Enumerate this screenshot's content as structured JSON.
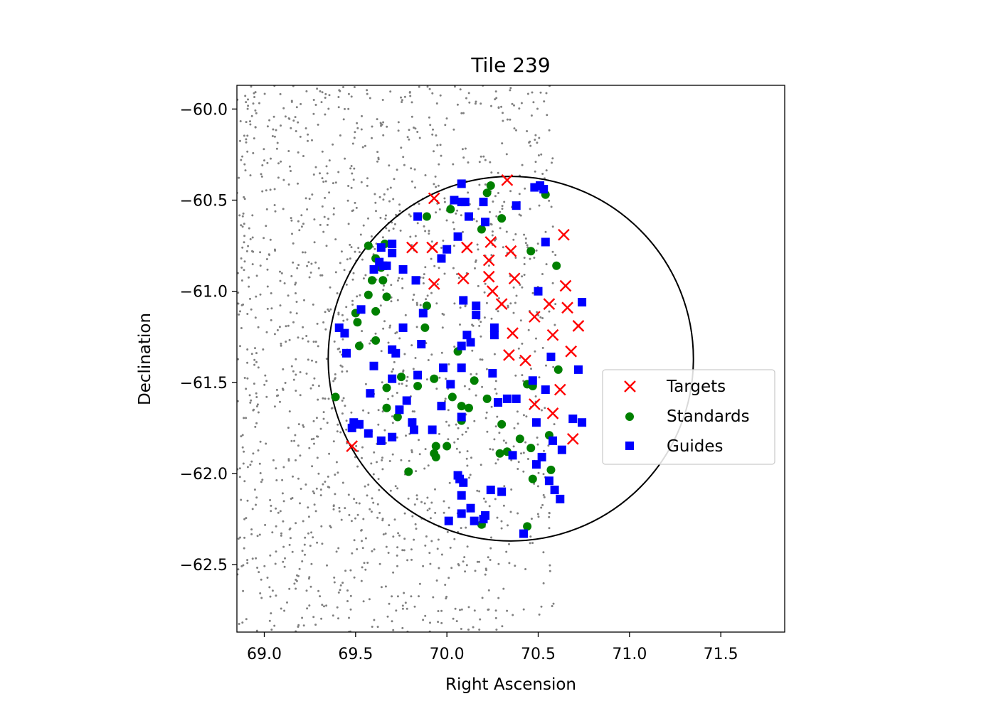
{
  "chart_data": {
    "type": "scatter",
    "title": "Tile 239",
    "xlabel": "Right Ascension",
    "ylabel": "Declination",
    "xlim": [
      68.85,
      71.85
    ],
    "ylim": [
      -62.87,
      -59.87
    ],
    "xticks": [
      69.0,
      69.5,
      70.0,
      70.5,
      71.0,
      71.5
    ],
    "xtick_labels": [
      "69.0",
      "69.5",
      "70.0",
      "70.5",
      "71.0",
      "71.5"
    ],
    "yticks": [
      -60.0,
      -60.5,
      -61.0,
      -61.5,
      -62.0,
      -62.5
    ],
    "ytick_labels": [
      "−60.0",
      "−60.5",
      "−61.0",
      "−61.5",
      "−62.0",
      "−62.5"
    ],
    "legend_position": "center-right",
    "grid": false,
    "tile_circle": {
      "center": [
        70.35,
        -61.37
      ],
      "radius_deg": 1.0,
      "color": "#000000"
    },
    "background_points": {
      "color": "#808080",
      "ra_range": [
        68.85,
        70.6
      ],
      "dec_range": [
        -62.87,
        -59.87
      ],
      "density": "dense on left, sparser toward ~70.5"
    },
    "series": [
      {
        "name": "Targets",
        "marker": "x",
        "color": "#ff0000",
        "points": [
          [
            70.33,
            -60.39
          ],
          [
            69.93,
            -60.49
          ],
          [
            69.81,
            -60.76
          ],
          [
            69.92,
            -60.76
          ],
          [
            70.11,
            -60.76
          ],
          [
            70.24,
            -60.73
          ],
          [
            70.35,
            -60.78
          ],
          [
            70.64,
            -60.69
          ],
          [
            70.23,
            -60.83
          ],
          [
            70.09,
            -60.93
          ],
          [
            70.23,
            -60.92
          ],
          [
            70.37,
            -60.93
          ],
          [
            69.93,
            -60.96
          ],
          [
            70.25,
            -61.0
          ],
          [
            70.3,
            -61.07
          ],
          [
            70.65,
            -60.97
          ],
          [
            70.56,
            -61.07
          ],
          [
            70.66,
            -61.09
          ],
          [
            70.48,
            -61.14
          ],
          [
            70.72,
            -61.19
          ],
          [
            70.36,
            -61.23
          ],
          [
            70.58,
            -61.24
          ],
          [
            70.34,
            -61.35
          ],
          [
            70.43,
            -61.38
          ],
          [
            70.68,
            -61.33
          ],
          [
            70.62,
            -61.54
          ],
          [
            70.48,
            -61.62
          ],
          [
            70.58,
            -61.67
          ],
          [
            70.69,
            -61.81
          ],
          [
            69.48,
            -61.85
          ]
        ]
      },
      {
        "name": "Standards",
        "marker": "circle",
        "color": "#008000",
        "points": [
          [
            70.24,
            -60.42
          ],
          [
            70.22,
            -60.46
          ],
          [
            70.54,
            -60.47
          ],
          [
            69.89,
            -60.59
          ],
          [
            70.02,
            -60.55
          ],
          [
            70.3,
            -60.6
          ],
          [
            70.19,
            -60.66
          ],
          [
            69.57,
            -60.75
          ],
          [
            69.66,
            -60.74
          ],
          [
            69.61,
            -60.82
          ],
          [
            70.46,
            -60.78
          ],
          [
            70.6,
            -60.86
          ],
          [
            69.64,
            -60.87
          ],
          [
            69.59,
            -60.94
          ],
          [
            69.65,
            -60.94
          ],
          [
            69.57,
            -61.02
          ],
          [
            69.67,
            -61.03
          ],
          [
            69.5,
            -61.12
          ],
          [
            69.61,
            -61.11
          ],
          [
            69.89,
            -61.08
          ],
          [
            69.51,
            -61.17
          ],
          [
            69.88,
            -61.2
          ],
          [
            69.52,
            -61.3
          ],
          [
            69.61,
            -61.27
          ],
          [
            70.06,
            -61.33
          ],
          [
            69.75,
            -61.47
          ],
          [
            70.61,
            -61.43
          ],
          [
            69.93,
            -61.48
          ],
          [
            69.67,
            -61.53
          ],
          [
            69.84,
            -61.52
          ],
          [
            70.15,
            -61.49
          ],
          [
            70.44,
            -61.51
          ],
          [
            70.47,
            -61.52
          ],
          [
            69.39,
            -61.58
          ],
          [
            70.03,
            -61.58
          ],
          [
            70.22,
            -61.59
          ],
          [
            70.08,
            -61.63
          ],
          [
            70.12,
            -61.64
          ],
          [
            69.67,
            -61.64
          ],
          [
            69.73,
            -61.69
          ],
          [
            70.08,
            -61.71
          ],
          [
            70.3,
            -61.73
          ],
          [
            70.56,
            -61.79
          ],
          [
            70.4,
            -61.81
          ],
          [
            69.94,
            -61.85
          ],
          [
            70.0,
            -61.85
          ],
          [
            70.46,
            -61.86
          ],
          [
            70.33,
            -61.88
          ],
          [
            70.29,
            -61.89
          ],
          [
            69.94,
            -61.91
          ],
          [
            69.93,
            -61.89
          ],
          [
            70.57,
            -61.98
          ],
          [
            69.79,
            -61.99
          ],
          [
            70.47,
            -62.03
          ],
          [
            70.19,
            -62.28
          ],
          [
            70.44,
            -62.29
          ]
        ]
      },
      {
        "name": "Guides",
        "marker": "square",
        "color": "#0000ff",
        "points": [
          [
            70.08,
            -60.41
          ],
          [
            70.51,
            -60.42
          ],
          [
            70.48,
            -60.43
          ],
          [
            70.53,
            -60.44
          ],
          [
            70.04,
            -60.5
          ],
          [
            70.08,
            -60.51
          ],
          [
            70.1,
            -60.51
          ],
          [
            70.2,
            -60.51
          ],
          [
            70.38,
            -60.53
          ],
          [
            69.84,
            -60.59
          ],
          [
            70.12,
            -60.59
          ],
          [
            70.21,
            -60.62
          ],
          [
            70.06,
            -60.7
          ],
          [
            70.54,
            -60.73
          ],
          [
            69.7,
            -60.74
          ],
          [
            69.64,
            -60.76
          ],
          [
            70.0,
            -60.77
          ],
          [
            69.7,
            -60.79
          ],
          [
            69.97,
            -60.82
          ],
          [
            69.63,
            -60.84
          ],
          [
            69.65,
            -60.86
          ],
          [
            69.67,
            -60.86
          ],
          [
            69.6,
            -60.88
          ],
          [
            69.76,
            -60.88
          ],
          [
            69.83,
            -60.94
          ],
          [
            70.5,
            -61.0
          ],
          [
            70.74,
            -61.06
          ],
          [
            70.09,
            -61.05
          ],
          [
            70.16,
            -61.08
          ],
          [
            69.53,
            -61.1
          ],
          [
            69.87,
            -61.12
          ],
          [
            70.16,
            -61.13
          ],
          [
            69.41,
            -61.2
          ],
          [
            69.76,
            -61.2
          ],
          [
            70.26,
            -61.2
          ],
          [
            69.44,
            -61.23
          ],
          [
            70.11,
            -61.24
          ],
          [
            70.26,
            -61.24
          ],
          [
            70.13,
            -61.28
          ],
          [
            69.86,
            -61.29
          ],
          [
            70.08,
            -61.3
          ],
          [
            69.7,
            -61.32
          ],
          [
            69.72,
            -61.34
          ],
          [
            69.45,
            -61.34
          ],
          [
            70.57,
            -61.36
          ],
          [
            69.6,
            -61.41
          ],
          [
            69.98,
            -61.42
          ],
          [
            70.08,
            -61.42
          ],
          [
            70.72,
            -61.43
          ],
          [
            70.25,
            -61.45
          ],
          [
            69.84,
            -61.46
          ],
          [
            69.7,
            -61.48
          ],
          [
            70.47,
            -61.49
          ],
          [
            70.02,
            -61.51
          ],
          [
            70.54,
            -61.54
          ],
          [
            69.58,
            -61.56
          ],
          [
            70.33,
            -61.59
          ],
          [
            70.38,
            -61.59
          ],
          [
            70.28,
            -61.61
          ],
          [
            69.78,
            -61.6
          ],
          [
            69.97,
            -61.63
          ],
          [
            69.74,
            -61.65
          ],
          [
            70.69,
            -61.7
          ],
          [
            70.08,
            -61.69
          ],
          [
            70.74,
            -61.72
          ],
          [
            69.49,
            -61.72
          ],
          [
            69.52,
            -61.73
          ],
          [
            70.49,
            -61.72
          ],
          [
            69.81,
            -61.72
          ],
          [
            69.82,
            -61.76
          ],
          [
            69.92,
            -61.76
          ],
          [
            69.48,
            -61.75
          ],
          [
            69.57,
            -61.78
          ],
          [
            69.7,
            -61.8
          ],
          [
            70.58,
            -61.82
          ],
          [
            69.64,
            -61.82
          ],
          [
            70.63,
            -61.87
          ],
          [
            70.36,
            -61.9
          ],
          [
            70.52,
            -61.91
          ],
          [
            70.49,
            -61.95
          ],
          [
            70.06,
            -62.01
          ],
          [
            70.07,
            -62.03
          ],
          [
            70.56,
            -62.04
          ],
          [
            70.09,
            -62.05
          ],
          [
            70.24,
            -62.09
          ],
          [
            70.59,
            -62.09
          ],
          [
            70.3,
            -62.1
          ],
          [
            70.08,
            -62.12
          ],
          [
            70.62,
            -62.14
          ],
          [
            70.13,
            -62.19
          ],
          [
            70.08,
            -62.22
          ],
          [
            70.21,
            -62.23
          ],
          [
            70.2,
            -62.25
          ],
          [
            70.01,
            -62.26
          ],
          [
            70.15,
            -62.26
          ],
          [
            70.42,
            -62.33
          ]
        ]
      }
    ]
  }
}
